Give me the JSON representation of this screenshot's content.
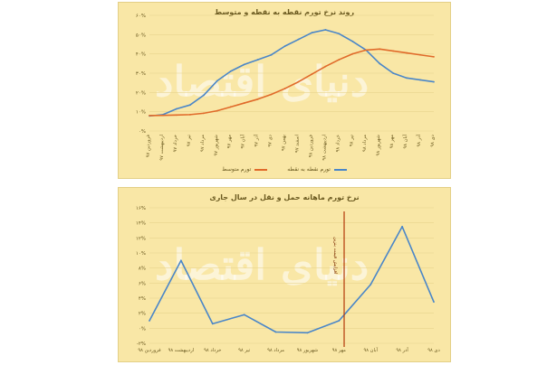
{
  "charts": {
    "chart1": {
      "title": "روند نرخ تورم نقطه به نقطه و متوسط",
      "watermark": "دنیای اقتصاد",
      "legend": [
        "تورم نقطه به نقطه",
        "تورم متوسط"
      ]
    },
    "chart2": {
      "title": "نرخ تورم ماهانه حمل و نقل در سال جاری",
      "watermark": "دنیای اقتصاد",
      "annotation": "افزایش قیمت بنزین"
    }
  },
  "chart_data": [
    {
      "type": "line",
      "title": "روند نرخ تورم نقطه به نقطه و متوسط",
      "xlabel": "",
      "ylabel": "",
      "categories": [
        "فروردین ۹۷",
        "اردیبهشت ۹۷",
        "خرداد ۹۷",
        "تیر ۹۷",
        "مرداد ۹۷",
        "شهریور ۹۷",
        "مهر ۹۷",
        "آبان ۹۷",
        "آذر ۹۷",
        "دی ۹۷",
        "بهمن ۹۷",
        "اسفند ۹۷",
        "فروردین ۹۸",
        "اردیبهشت ۹۸",
        "خرداد ۹۸",
        "تیر ۹۸",
        "مرداد ۹۸",
        "شهریور ۹۸",
        "مهر ۹۸",
        "آبان ۹۸",
        "آذر ۹۸",
        "دی ۹۸"
      ],
      "yticks": [
        "۰%",
        "۱۰%",
        "۲۰%",
        "۳۰%",
        "۴۰%",
        "۵۰%",
        "۶۰%"
      ],
      "ylim": [
        0,
        60
      ],
      "series": [
        {
          "name": "تورم نقطه به نقطه",
          "color": "#4a86c8",
          "values": [
            7.8,
            8.5,
            11.5,
            13.5,
            18.5,
            26.0,
            31.0,
            34.5,
            37.0,
            39.5,
            44.0,
            47.5,
            51.0,
            52.5,
            50.5,
            46.5,
            42.0,
            35.0,
            30.0,
            27.5,
            26.5,
            25.5
          ]
        },
        {
          "name": "تورم متوسط",
          "color": "#e06a2a",
          "values": [
            8.0,
            8.1,
            8.3,
            8.5,
            9.2,
            10.5,
            12.5,
            14.5,
            16.5,
            19.0,
            22.0,
            25.5,
            29.5,
            33.5,
            37.0,
            40.0,
            42.0,
            42.5,
            41.5,
            40.5,
            39.5,
            38.5
          ]
        }
      ],
      "grid": true,
      "legend_position": "bottom"
    },
    {
      "type": "line",
      "title": "نرخ تورم ماهانه حمل و نقل در سال جاری",
      "xlabel": "",
      "ylabel": "",
      "categories": [
        "فروردین ۹۸",
        "اردیبهشت ۹۸",
        "خرداد ۹۸",
        "تیر ۹۸",
        "مرداد ۹۸",
        "شهریور ۹۸",
        "مهر ۹۸",
        "آبان ۹۸",
        "آذر ۹۸",
        "دی ۹۸"
      ],
      "yticks": [
        "-۲%",
        "۰%",
        "۲%",
        "۴%",
        "۶%",
        "۸%",
        "۱۰%",
        "۱۲%",
        "۱۴%",
        "۱۶%"
      ],
      "ylim": [
        -2,
        16
      ],
      "series": [
        {
          "name": "",
          "color": "#4a86c8",
          "values": [
            1.0,
            9.0,
            0.6,
            1.8,
            -0.5,
            -0.6,
            1.0,
            5.8,
            13.5,
            3.5
          ]
        }
      ],
      "grid": true
    }
  ]
}
